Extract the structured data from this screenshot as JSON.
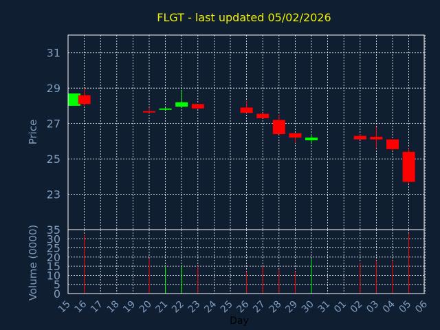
{
  "chart_data": {
    "type": "candlestick",
    "title": "FLGT - last updated 05/02/2026",
    "xlabel": "Day",
    "price_panel": {
      "ylabel": "Price",
      "yticks": [
        23,
        25,
        27,
        29,
        31
      ],
      "ylim": [
        21,
        32
      ]
    },
    "volume_panel": {
      "ylabel": "Volume (0000)",
      "yticks": [
        0,
        5,
        10,
        15,
        20,
        25,
        30,
        35
      ],
      "ylim": [
        0,
        35
      ]
    },
    "x_tick_labels": [
      "15",
      "16",
      "17",
      "18",
      "19",
      "20",
      "21",
      "22",
      "23",
      "24",
      "25",
      "26",
      "27",
      "28",
      "29",
      "30",
      "31",
      "01",
      "02",
      "03",
      "04",
      "05",
      "06"
    ],
    "candles": [
      {
        "day": "15",
        "open": 28.0,
        "high": 28.7,
        "low": 28.0,
        "close": 28.7,
        "volume": 0
      },
      {
        "day": "16",
        "open": 28.6,
        "high": 29.0,
        "low": 28.0,
        "close": 28.1,
        "volume": 32
      },
      {
        "day": "20",
        "open": 27.7,
        "high": 27.9,
        "low": 27.6,
        "close": 27.65,
        "volume": 19
      },
      {
        "day": "21",
        "open": 27.8,
        "high": 27.9,
        "low": 27.8,
        "close": 27.85,
        "volume": 15
      },
      {
        "day": "22",
        "open": 27.95,
        "high": 28.9,
        "low": 27.9,
        "close": 28.2,
        "volume": 15
      },
      {
        "day": "23",
        "open": 28.1,
        "high": 28.1,
        "low": 27.8,
        "close": 27.85,
        "volume": 15
      },
      {
        "day": "26",
        "open": 27.9,
        "high": 28.3,
        "low": 27.6,
        "close": 27.6,
        "volume": 12
      },
      {
        "day": "27",
        "open": 27.55,
        "high": 27.6,
        "low": 27.3,
        "close": 27.3,
        "volume": 15
      },
      {
        "day": "28",
        "open": 27.2,
        "high": 27.5,
        "low": 26.4,
        "close": 26.4,
        "volume": 13
      },
      {
        "day": "29",
        "open": 26.45,
        "high": 26.45,
        "low": 25.9,
        "close": 26.2,
        "volume": 12
      },
      {
        "day": "30",
        "open": 26.05,
        "high": 26.4,
        "low": 25.9,
        "close": 26.2,
        "volume": 19
      },
      {
        "day": "02",
        "open": 26.3,
        "high": 26.4,
        "low": 26.1,
        "close": 26.1,
        "volume": 17
      },
      {
        "day": "03",
        "open": 26.25,
        "high": 26.8,
        "low": 25.6,
        "close": 26.1,
        "volume": 18
      },
      {
        "day": "04",
        "open": 26.1,
        "high": 26.1,
        "low": 25.5,
        "close": 25.55,
        "volume": 18
      },
      {
        "day": "05",
        "open": 25.4,
        "high": 25.6,
        "low": 23.6,
        "close": 23.7,
        "volume": 33
      }
    ],
    "colors": {
      "background": "#0f1e30",
      "frame": "#ffffff",
      "grid": "#ffffff",
      "title": "#f2f200",
      "axis_text": "#7f9dbf",
      "up": "#00ff00",
      "down": "#ff0000"
    },
    "grid": true
  }
}
